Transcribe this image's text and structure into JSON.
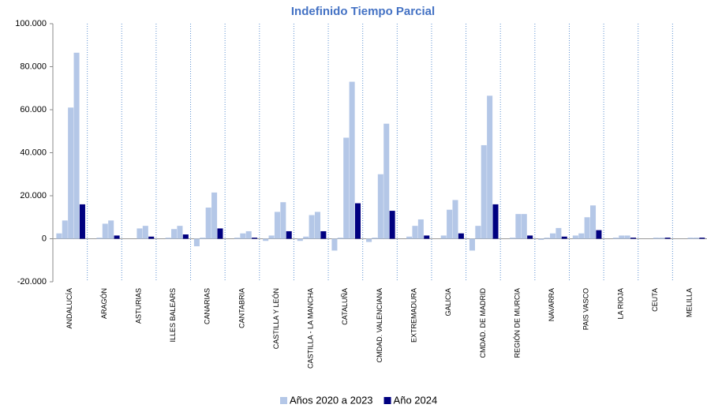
{
  "chart_data": {
    "type": "bar",
    "title": "Indefinido Tiempo Parcial",
    "categories": [
      "ANDALUCÍA",
      "ARAGÓN",
      "ASTURIAS",
      "ILLES BALEARS",
      "CANARIAS",
      "CANTABRIA",
      "CASTILLA Y LEÓN",
      "CASTILLA - LA MANCHA",
      "CATALUÑA",
      "CMDAD. VALENCIANA",
      "EXTREMADURA",
      "GALICIA",
      "CMDAD. DE MADRID",
      "REGIÓN DE MURCIA",
      "NAVARRA",
      "PAIS VASCO",
      "LA RIOJA",
      "CEUTA",
      "MELILLA"
    ],
    "series": [
      {
        "name": "Años 2020 a 2023",
        "color": "#b4c7e7",
        "values": [
          [
            2500,
            8500,
            61000,
            86500
          ],
          [
            0,
            500,
            7000,
            8500
          ],
          [
            0,
            0,
            4800,
            6000
          ],
          [
            0,
            500,
            4500,
            6000
          ],
          [
            -3500,
            500,
            14500,
            21500
          ],
          [
            0,
            500,
            2500,
            3500
          ],
          [
            -1000,
            1500,
            12500,
            17000
          ],
          [
            -1000,
            1000,
            11000,
            12500
          ],
          [
            -5500,
            500,
            47000,
            73000
          ],
          [
            -1500,
            500,
            30000,
            53500
          ],
          [
            0,
            1000,
            6000,
            9000
          ],
          [
            0,
            1500,
            13500,
            18000
          ],
          [
            -5500,
            6000,
            43500,
            66500
          ],
          [
            0,
            500,
            11500,
            11500
          ],
          [
            -500,
            500,
            2500,
            5000
          ],
          [
            1500,
            2500,
            10000,
            15500
          ],
          [
            0,
            500,
            1500,
            1500
          ],
          [
            0,
            0,
            500,
            500
          ],
          [
            0,
            0,
            500,
            500
          ]
        ]
      },
      {
        "name": "Año 2024",
        "color": "#000080",
        "values": [
          16000,
          1500,
          1000,
          2000,
          4800,
          500,
          3500,
          3500,
          16500,
          13000,
          1500,
          2500,
          16000,
          1500,
          1000,
          4000,
          500,
          500,
          500
        ]
      }
    ],
    "ylim": [
      -20000,
      100000
    ],
    "yticks": [
      {
        "value": -20000,
        "label": "-20.000"
      },
      0,
      {
        "value": 20000,
        "label": "20.000"
      },
      {
        "value": 40000,
        "label": "40.000"
      },
      {
        "value": 60000,
        "label": "60.000"
      },
      {
        "value": 80000,
        "label": "80.000"
      },
      {
        "value": 100000,
        "label": "100.000"
      }
    ],
    "legend": "bottom"
  }
}
